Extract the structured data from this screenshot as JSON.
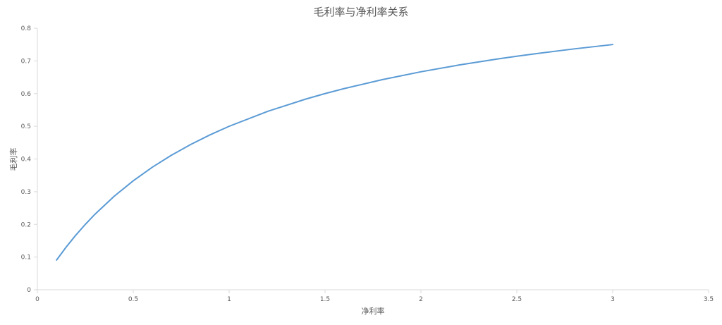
{
  "chart_data": {
    "type": "line",
    "title": "毛利率与净利率关系",
    "xlabel": "净利率",
    "ylabel": "毛利率",
    "xlim": [
      0,
      3.5
    ],
    "ylim": [
      0,
      0.8
    ],
    "xticks": [
      "0",
      "0.5",
      "1",
      "1.5",
      "2",
      "2.5",
      "3",
      "3.5"
    ],
    "yticks": [
      "0",
      "0.1",
      "0.2",
      "0.3",
      "0.4",
      "0.5",
      "0.6",
      "0.7",
      "0.8"
    ],
    "grid": false,
    "series": [
      {
        "color": "#5B9BD5",
        "x": [
          0.1,
          0.15,
          0.2,
          0.25,
          0.3,
          0.4,
          0.5,
          0.6,
          0.7,
          0.8,
          0.9,
          1.0,
          1.2,
          1.4,
          1.5,
          1.6,
          1.8,
          2.0,
          2.2,
          2.4,
          2.5,
          2.6,
          2.8,
          3.0
        ],
        "y": [
          0.0909,
          0.1304,
          0.1667,
          0.2,
          0.2308,
          0.2857,
          0.3333,
          0.375,
          0.4118,
          0.4444,
          0.4737,
          0.5,
          0.5455,
          0.5833,
          0.6,
          0.6154,
          0.6429,
          0.6667,
          0.6875,
          0.7059,
          0.7143,
          0.7222,
          0.7368,
          0.75
        ]
      }
    ]
  }
}
